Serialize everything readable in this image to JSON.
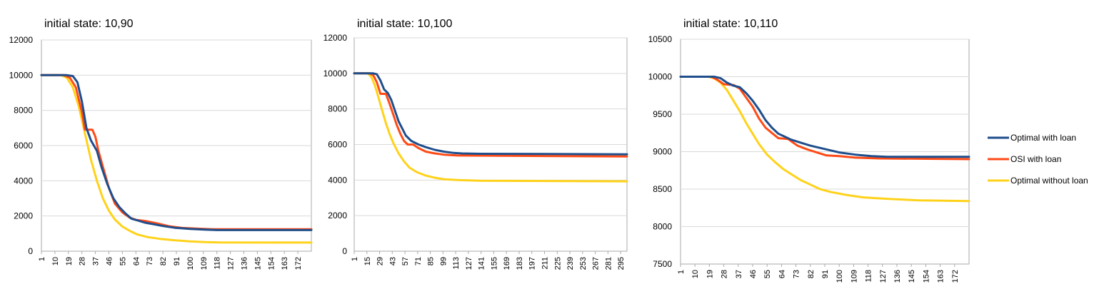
{
  "colors": {
    "optimal_with_loan": "#1f4e8c",
    "osi_with_loan": "#ff4a16",
    "optimal_without_loan": "#ffd21a",
    "grid": "#d9d9d9",
    "axis": "#aaaaaa"
  },
  "legend": {
    "placement": "right",
    "items": [
      "Optimal with loan",
      "OSI with loan",
      "Optimal without loan"
    ]
  },
  "chart_data": [
    {
      "type": "line",
      "title": "initial state: 10,90",
      "ylim": [
        0,
        12000
      ],
      "yticks": [
        0,
        2000,
        4000,
        6000,
        8000,
        10000,
        12000
      ],
      "xlim": [
        1,
        181
      ],
      "xticks": [
        1,
        10,
        19,
        28,
        37,
        46,
        55,
        64,
        73,
        82,
        91,
        100,
        109,
        118,
        127,
        136,
        145,
        154,
        163,
        172
      ],
      "grid": true,
      "series": [
        {
          "name": "Optimal with loan",
          "color_key": "optimal_with_loan",
          "points": [
            [
              1,
              10000
            ],
            [
              18,
              10000
            ],
            [
              22,
              9950
            ],
            [
              25,
              9600
            ],
            [
              28,
              8500
            ],
            [
              31,
              7000
            ],
            [
              34,
              6300
            ],
            [
              38,
              5700
            ],
            [
              41,
              4800
            ],
            [
              45,
              3800
            ],
            [
              49,
              3000
            ],
            [
              53,
              2500
            ],
            [
              57,
              2150
            ],
            [
              61,
              1850
            ],
            [
              65,
              1750
            ],
            [
              70,
              1620
            ],
            [
              76,
              1530
            ],
            [
              82,
              1430
            ],
            [
              90,
              1330
            ],
            [
              100,
              1270
            ],
            [
              110,
              1230
            ],
            [
              118,
              1200
            ],
            [
              181,
              1200
            ]
          ]
        },
        {
          "name": "OSI with loan",
          "color_key": "osi_with_loan",
          "points": [
            [
              1,
              10000
            ],
            [
              16,
              10000
            ],
            [
              20,
              9850
            ],
            [
              24,
              9300
            ],
            [
              28,
              7900
            ],
            [
              30,
              6900
            ],
            [
              35,
              6900
            ],
            [
              37,
              6500
            ],
            [
              39,
              5700
            ],
            [
              42,
              4800
            ],
            [
              46,
              3600
            ],
            [
              50,
              2700
            ],
            [
              55,
              2200
            ],
            [
              60,
              1900
            ],
            [
              64,
              1780
            ],
            [
              70,
              1720
            ],
            [
              78,
              1580
            ],
            [
              86,
              1420
            ],
            [
              95,
              1320
            ],
            [
              105,
              1280
            ],
            [
              115,
              1250
            ],
            [
              181,
              1250
            ]
          ]
        },
        {
          "name": "Optimal without loan",
          "color_key": "optimal_without_loan",
          "points": [
            [
              1,
              10000
            ],
            [
              14,
              10000
            ],
            [
              18,
              9850
            ],
            [
              22,
              9300
            ],
            [
              26,
              8200
            ],
            [
              30,
              6700
            ],
            [
              34,
              5200
            ],
            [
              38,
              4000
            ],
            [
              42,
              3000
            ],
            [
              46,
              2300
            ],
            [
              50,
              1800
            ],
            [
              55,
              1400
            ],
            [
              60,
              1150
            ],
            [
              65,
              950
            ],
            [
              72,
              800
            ],
            [
              80,
              700
            ],
            [
              90,
              620
            ],
            [
              100,
              560
            ],
            [
              110,
              520
            ],
            [
              120,
              500
            ],
            [
              181,
              490
            ]
          ]
        }
      ]
    },
    {
      "type": "line",
      "title": "initial state: 10,100",
      "ylim": [
        0,
        12000
      ],
      "yticks": [
        0,
        2000,
        4000,
        6000,
        8000,
        10000,
        12000
      ],
      "xlim": [
        1,
        302
      ],
      "xticks": [
        1,
        15,
        29,
        43,
        57,
        71,
        85,
        99,
        113,
        127,
        141,
        155,
        169,
        183,
        197,
        211,
        225,
        239,
        253,
        267,
        281,
        295
      ],
      "grid": true,
      "series": [
        {
          "name": "Optimal with loan",
          "color_key": "optimal_with_loan",
          "points": [
            [
              1,
              10000
            ],
            [
              22,
              10000
            ],
            [
              26,
              9950
            ],
            [
              30,
              9600
            ],
            [
              34,
              9100
            ],
            [
              38,
              8900
            ],
            [
              42,
              8500
            ],
            [
              46,
              7900
            ],
            [
              50,
              7300
            ],
            [
              54,
              6900
            ],
            [
              58,
              6500
            ],
            [
              64,
              6200
            ],
            [
              72,
              6000
            ],
            [
              80,
              5850
            ],
            [
              90,
              5700
            ],
            [
              100,
              5600
            ],
            [
              110,
              5530
            ],
            [
              120,
              5500
            ],
            [
              140,
              5480
            ],
            [
              302,
              5450
            ]
          ]
        },
        {
          "name": "OSI with loan",
          "color_key": "osi_with_loan",
          "points": [
            [
              1,
              10000
            ],
            [
              18,
              10000
            ],
            [
              22,
              9900
            ],
            [
              26,
              9500
            ],
            [
              30,
              8850
            ],
            [
              36,
              8850
            ],
            [
              40,
              8300
            ],
            [
              44,
              7700
            ],
            [
              48,
              7100
            ],
            [
              52,
              6600
            ],
            [
              56,
              6200
            ],
            [
              60,
              6000
            ],
            [
              66,
              6000
            ],
            [
              72,
              5800
            ],
            [
              80,
              5600
            ],
            [
              90,
              5500
            ],
            [
              100,
              5430
            ],
            [
              115,
              5380
            ],
            [
              302,
              5330
            ]
          ]
        },
        {
          "name": "Optimal without loan",
          "color_key": "optimal_without_loan",
          "points": [
            [
              1,
              10000
            ],
            [
              16,
              10000
            ],
            [
              20,
              9800
            ],
            [
              24,
              9300
            ],
            [
              28,
              8600
            ],
            [
              32,
              7900
            ],
            [
              36,
              7200
            ],
            [
              40,
              6600
            ],
            [
              44,
              6100
            ],
            [
              50,
              5500
            ],
            [
              56,
              5050
            ],
            [
              62,
              4700
            ],
            [
              70,
              4450
            ],
            [
              80,
              4250
            ],
            [
              90,
              4130
            ],
            [
              100,
              4050
            ],
            [
              115,
              4000
            ],
            [
              140,
              3960
            ],
            [
              302,
              3930
            ]
          ]
        }
      ]
    },
    {
      "type": "line",
      "title": "initial state: 10,110",
      "ylim": [
        7500,
        10500
      ],
      "yticks": [
        7500,
        8000,
        8500,
        9000,
        9500,
        10000,
        10500
      ],
      "xlim": [
        1,
        181
      ],
      "xticks": [
        1,
        10,
        19,
        28,
        37,
        46,
        55,
        64,
        73,
        82,
        91,
        100,
        109,
        118,
        127,
        136,
        145,
        154,
        163,
        172
      ],
      "grid": true,
      "series": [
        {
          "name": "Optimal with loan",
          "color_key": "optimal_with_loan",
          "points": [
            [
              1,
              10000
            ],
            [
              22,
              10000
            ],
            [
              26,
              9980
            ],
            [
              30,
              9920
            ],
            [
              34,
              9880
            ],
            [
              38,
              9860
            ],
            [
              42,
              9780
            ],
            [
              46,
              9680
            ],
            [
              50,
              9560
            ],
            [
              54,
              9420
            ],
            [
              58,
              9320
            ],
            [
              62,
              9240
            ],
            [
              66,
              9200
            ],
            [
              70,
              9160
            ],
            [
              76,
              9120
            ],
            [
              82,
              9080
            ],
            [
              90,
              9040
            ],
            [
              100,
              8990
            ],
            [
              110,
              8960
            ],
            [
              120,
              8940
            ],
            [
              130,
              8930
            ],
            [
              181,
              8930
            ]
          ]
        },
        {
          "name": "OSI with loan",
          "color_key": "osi_with_loan",
          "points": [
            [
              1,
              10000
            ],
            [
              20,
              10000
            ],
            [
              24,
              9960
            ],
            [
              28,
              9900
            ],
            [
              34,
              9890
            ],
            [
              38,
              9840
            ],
            [
              42,
              9720
            ],
            [
              46,
              9600
            ],
            [
              50,
              9440
            ],
            [
              54,
              9320
            ],
            [
              58,
              9250
            ],
            [
              62,
              9180
            ],
            [
              68,
              9170
            ],
            [
              74,
              9080
            ],
            [
              80,
              9030
            ],
            [
              86,
              8990
            ],
            [
              92,
              8950
            ],
            [
              100,
              8940
            ],
            [
              110,
              8920
            ],
            [
              125,
              8910
            ],
            [
              181,
              8900
            ]
          ]
        },
        {
          "name": "Optimal without loan",
          "color_key": "optimal_without_loan",
          "points": [
            [
              1,
              10000
            ],
            [
              18,
              10000
            ],
            [
              22,
              9980
            ],
            [
              26,
              9920
            ],
            [
              30,
              9820
            ],
            [
              34,
              9680
            ],
            [
              38,
              9540
            ],
            [
              42,
              9380
            ],
            [
              46,
              9240
            ],
            [
              50,
              9100
            ],
            [
              55,
              8960
            ],
            [
              60,
              8860
            ],
            [
              65,
              8770
            ],
            [
              70,
              8700
            ],
            [
              76,
              8620
            ],
            [
              82,
              8560
            ],
            [
              88,
              8500
            ],
            [
              95,
              8460
            ],
            [
              105,
              8420
            ],
            [
              115,
              8390
            ],
            [
              130,
              8370
            ],
            [
              150,
              8350
            ],
            [
              181,
              8340
            ]
          ]
        }
      ]
    }
  ]
}
